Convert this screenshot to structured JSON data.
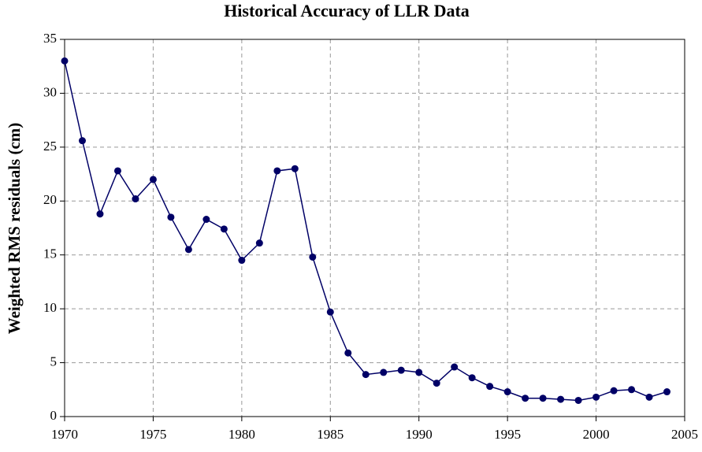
{
  "chart_data": {
    "type": "line",
    "title": "Historical Accuracy of LLR Data",
    "y_label": "Weighted RMS residuals (cm)",
    "x": [
      1970,
      1971,
      1972,
      1973,
      1974,
      1975,
      1976,
      1977,
      1978,
      1979,
      1980,
      1981,
      1982,
      1983,
      1984,
      1985,
      1986,
      1987,
      1988,
      1989,
      1990,
      1991,
      1992,
      1993,
      1994,
      1995,
      1996,
      1997,
      1998,
      1999,
      2000,
      2001,
      2002,
      2003,
      2004
    ],
    "series": [
      {
        "name": "Weighted RMS residuals",
        "color": "#000066",
        "values": [
          33.0,
          25.6,
          18.8,
          22.8,
          20.2,
          22.0,
          18.5,
          15.5,
          18.3,
          17.4,
          14.5,
          16.1,
          22.8,
          23.0,
          14.8,
          9.7,
          5.9,
          3.9,
          4.1,
          4.3,
          4.1,
          3.1,
          4.6,
          3.6,
          2.8,
          2.3,
          1.7,
          1.7,
          1.6,
          1.5,
          1.8,
          2.4,
          2.5,
          1.8,
          2.3
        ]
      }
    ],
    "xlim": [
      1970,
      2005
    ],
    "xticks": [
      1970,
      1975,
      1980,
      1985,
      1990,
      1995,
      2000,
      2005
    ],
    "ylim": [
      0,
      35
    ],
    "yticks": [
      0,
      5,
      10,
      15,
      20,
      25,
      30,
      35
    ],
    "grid": true
  }
}
